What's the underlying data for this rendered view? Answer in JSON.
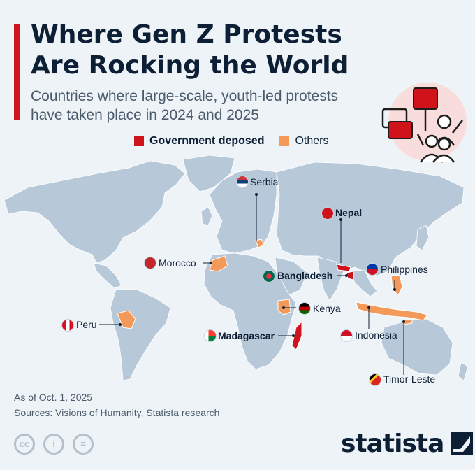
{
  "title": {
    "line1": "Where Gen Z Protests",
    "line2": "Are Rocking the World"
  },
  "subtitle": {
    "line1": "Countries where large-scale, youth-led protests",
    "line2": "have taken place in 2024 and 2025"
  },
  "legend": {
    "items": [
      {
        "label": "Government deposed",
        "color": "#d0121b"
      },
      {
        "label": "Others",
        "color": "#f39a5b"
      }
    ]
  },
  "colors": {
    "land": "#b7c9d9",
    "background": "#eef3f8",
    "deposed": "#d0121b",
    "others": "#f39a5b",
    "text": "#0d1f35"
  },
  "countries": [
    {
      "name": "Serbia",
      "status": "Others"
    },
    {
      "name": "Nepal",
      "status": "Government deposed"
    },
    {
      "name": "Morocco",
      "status": "Others"
    },
    {
      "name": "Bangladesh",
      "status": "Government deposed"
    },
    {
      "name": "Philippines",
      "status": "Others"
    },
    {
      "name": "Kenya",
      "status": "Others"
    },
    {
      "name": "Peru",
      "status": "Others"
    },
    {
      "name": "Madagascar",
      "status": "Government deposed"
    },
    {
      "name": "Indonesia",
      "status": "Others"
    },
    {
      "name": "Timor-Leste",
      "status": "Others"
    }
  ],
  "footer": {
    "date_note": "As of Oct. 1, 2025",
    "sources": "Sources: Visions of Humanity, Statista research",
    "license_icons": [
      "cc",
      "i",
      "="
    ],
    "brand": "statista"
  }
}
